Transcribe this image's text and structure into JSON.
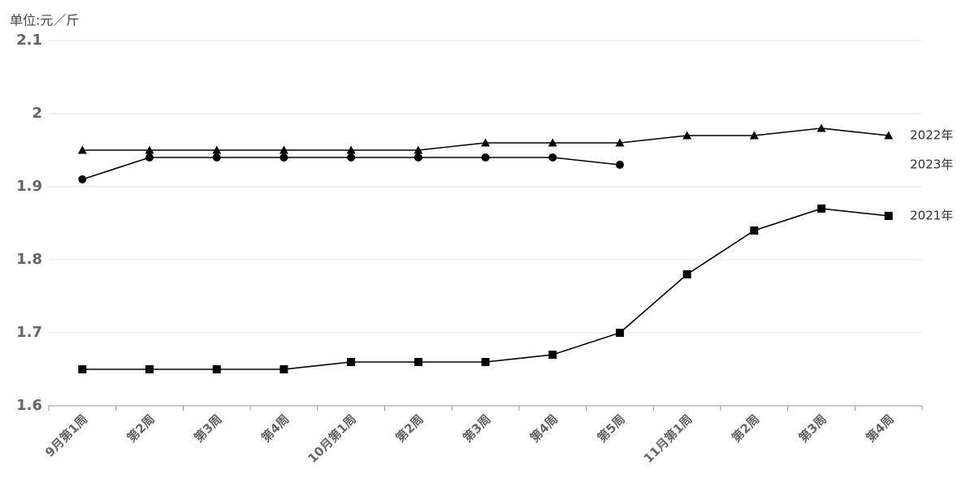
{
  "chart_data": {
    "type": "line",
    "y_label": "单位:元／斤",
    "categories": [
      "9月第1周",
      "第2周",
      "第3周",
      "第4周",
      "10月第1周",
      "第2周",
      "第3周",
      "第4周",
      "第5周",
      "11月第1周",
      "第2周",
      "第3周",
      "第4周"
    ],
    "series": [
      {
        "name": "2022年",
        "color": "#000000",
        "marker": "triangle",
        "values": [
          1.95,
          1.95,
          1.95,
          1.95,
          1.95,
          1.95,
          1.96,
          1.96,
          1.96,
          1.97,
          1.97,
          1.98,
          1.97
        ]
      },
      {
        "name": "2023年",
        "color": "#000000",
        "marker": "circle",
        "values": [
          1.91,
          1.94,
          1.94,
          1.94,
          1.94,
          1.94,
          1.94,
          1.94,
          1.93,
          null,
          null,
          null,
          null
        ]
      },
      {
        "name": "2021年",
        "color": "#000000",
        "marker": "square",
        "values": [
          1.65,
          1.65,
          1.65,
          1.65,
          1.66,
          1.66,
          1.66,
          1.67,
          1.7,
          1.78,
          1.84,
          1.87,
          1.86
        ]
      }
    ],
    "ylim": [
      1.6,
      2.1
    ],
    "yticks": [
      1.6,
      1.7,
      1.8,
      1.9,
      2,
      2.1
    ],
    "grid": true
  }
}
